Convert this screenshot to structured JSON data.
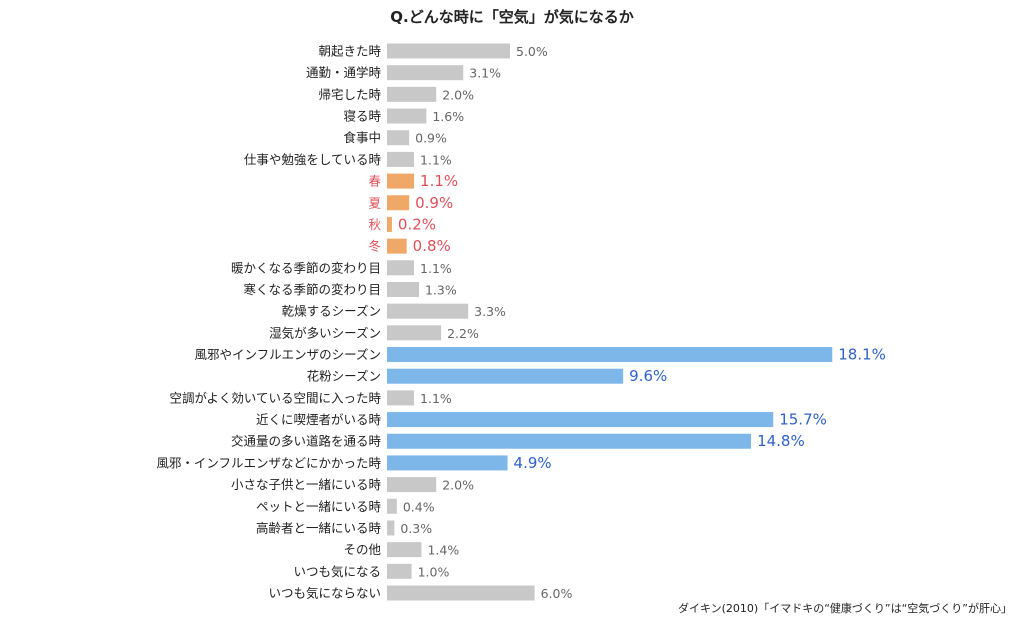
{
  "chart_data": {
    "type": "bar",
    "orientation": "horizontal",
    "title": "Q.どんな時に「空気」が気になるか",
    "source": "ダイキン(2010)「イマドキの“健康づくり”は“空気づくり”が肝心」",
    "unit": "%",
    "grid": false,
    "colors": {
      "default": "#c8c8c8",
      "season": "#f0a868",
      "highlight": "#7db7ea",
      "season_text": "#e0505a",
      "highlight_text": "#2f62c8",
      "default_text": "#666666"
    },
    "categories": [
      "朝起きた時",
      "通勤・通学時",
      "帰宅した時",
      "寝る時",
      "食事中",
      "仕事や勉強をしている時",
      "春",
      "夏",
      "秋",
      "冬",
      "暖かくなる季節の変わり目",
      "寒くなる季節の変わり目",
      "乾燥するシーズン",
      "湿気が多いシーズン",
      "風邪やインフルエンザのシーズン",
      "花粉シーズン",
      "空調がよく効いている空間に入った時",
      "近くに喫煙者がいる時",
      "交通量の多い道路を通る時",
      "風邪・インフルエンザなどにかかった時",
      "小さな子供と一緒にいる時",
      "ペットと一緒にいる時",
      "高齢者と一緒にいる時",
      "その他",
      "いつも気になる",
      "いつも気にならない"
    ],
    "values": [
      5.0,
      3.1,
      2.0,
      1.6,
      0.9,
      1.1,
      1.1,
      0.9,
      0.2,
      0.8,
      1.1,
      1.3,
      3.3,
      2.2,
      18.1,
      9.6,
      1.1,
      15.7,
      14.8,
      4.9,
      2.0,
      0.4,
      0.3,
      1.4,
      1.0,
      6.0
    ],
    "labels": [
      "5.0%",
      "3.1%",
      "2.0%",
      "1.6%",
      "0.9%",
      "1.1%",
      "1.1%",
      "0.9%",
      "0.2%",
      "0.8%",
      "1.1%",
      "1.3%",
      "3.3%",
      "2.2%",
      "18.1%",
      "9.6%",
      "1.1%",
      "15.7%",
      "14.8%",
      "4.9%",
      "2.0%",
      "0.4%",
      "0.3%",
      "1.4%",
      "1.0%",
      "6.0%"
    ],
    "groups": [
      "default",
      "default",
      "default",
      "default",
      "default",
      "default",
      "season",
      "season",
      "season",
      "season",
      "default",
      "default",
      "default",
      "default",
      "highlight",
      "highlight",
      "default",
      "highlight",
      "highlight",
      "highlight",
      "default",
      "default",
      "default",
      "default",
      "default",
      "default"
    ]
  }
}
